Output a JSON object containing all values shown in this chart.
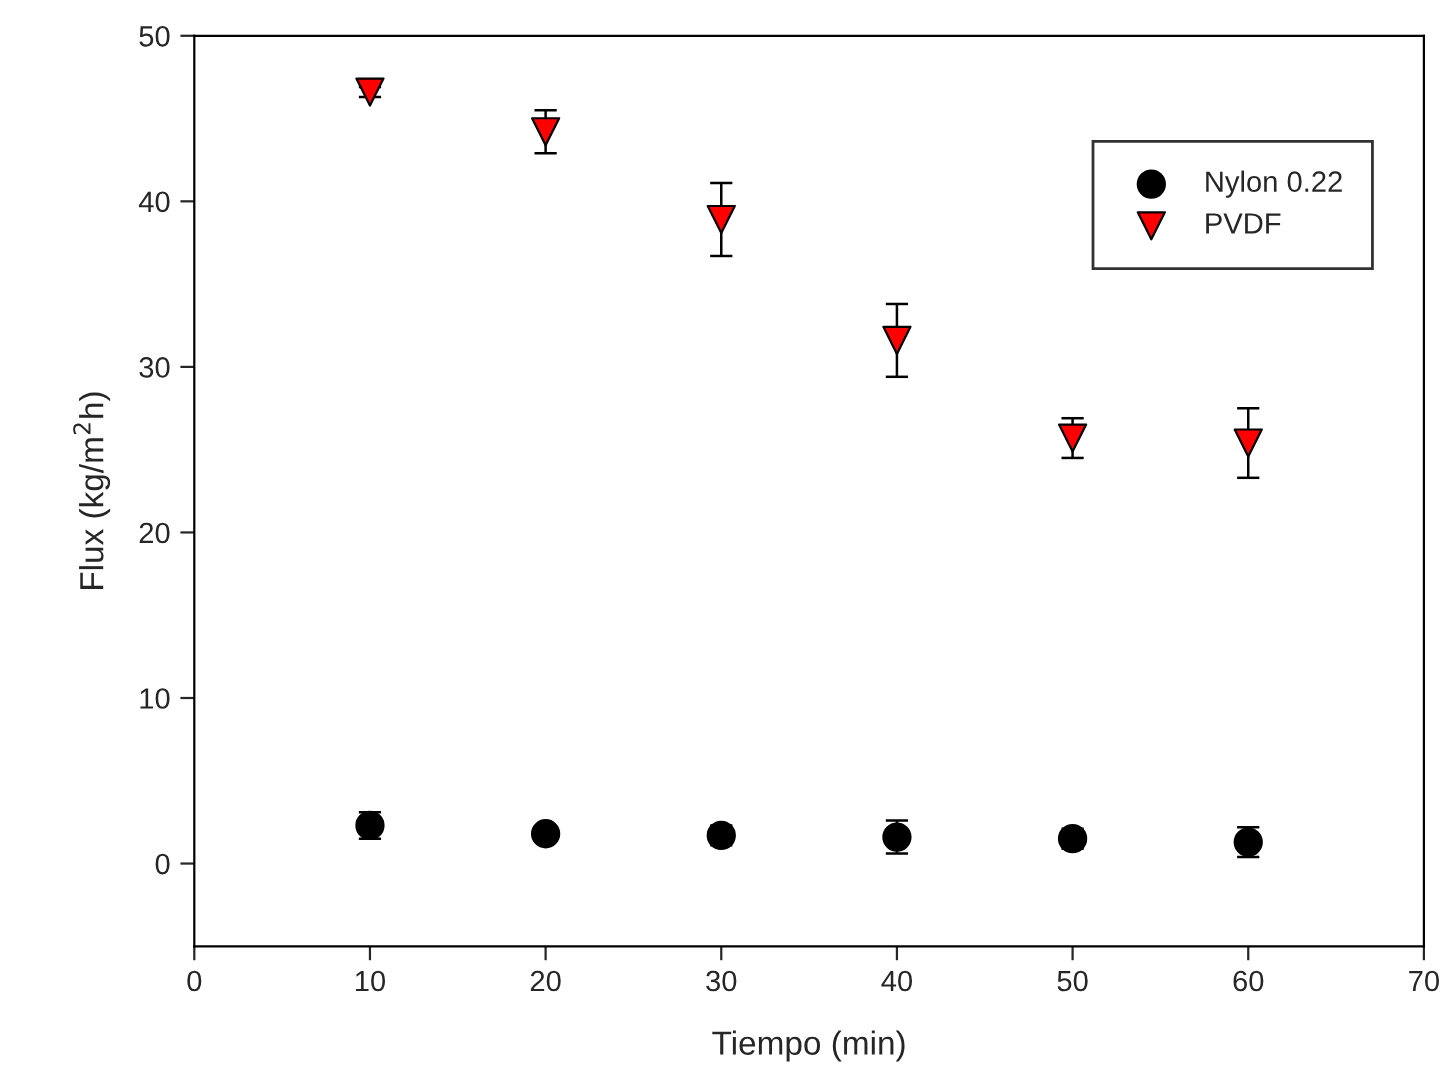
{
  "chart_data": {
    "type": "scatter",
    "xlabel": "Tiempo (min)",
    "ylabel": "Flux (kg/m$^{2}$h)",
    "xlim": [
      0,
      70
    ],
    "xticks": [
      0,
      10,
      20,
      30,
      40,
      50,
      60,
      70
    ],
    "ylim": [
      -5,
      50
    ],
    "yticks": [
      0,
      10,
      20,
      30,
      40,
      50
    ],
    "grid": false,
    "legend": "top right",
    "series": [
      {
        "name": "Nylon 0.22",
        "color": "#000000",
        "marker": "circle",
        "x": [
          10,
          20,
          30,
          40,
          50,
          60
        ],
        "values": [
          2.3,
          1.8,
          1.7,
          1.6,
          1.5,
          1.3
        ],
        "errors": [
          0.8,
          0.4,
          0.6,
          1.0,
          0.6,
          0.9
        ]
      },
      {
        "name": "PVDF",
        "color": "#ff0000",
        "marker": "triangle",
        "x": [
          10,
          20,
          30,
          40,
          50,
          60
        ],
        "values": [
          46.6,
          44.2,
          38.9,
          31.6,
          25.7,
          25.4
        ],
        "errors": [
          0.3,
          1.3,
          2.2,
          2.2,
          1.2,
          2.1
        ]
      }
    ]
  }
}
